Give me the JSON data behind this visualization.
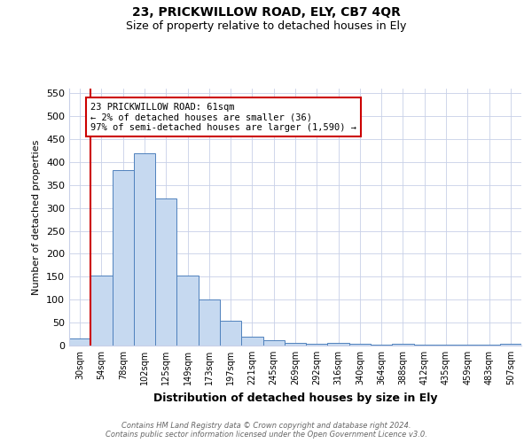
{
  "title1": "23, PRICKWILLOW ROAD, ELY, CB7 4QR",
  "title2": "Size of property relative to detached houses in Ely",
  "xlabel": "Distribution of detached houses by size in Ely",
  "ylabel": "Number of detached properties",
  "categories": [
    "30sqm",
    "54sqm",
    "78sqm",
    "102sqm",
    "125sqm",
    "149sqm",
    "173sqm",
    "197sqm",
    "221sqm",
    "245sqm",
    "269sqm",
    "292sqm",
    "316sqm",
    "340sqm",
    "364sqm",
    "388sqm",
    "412sqm",
    "435sqm",
    "459sqm",
    "483sqm",
    "507sqm"
  ],
  "values": [
    15,
    152,
    383,
    420,
    320,
    152,
    100,
    55,
    20,
    12,
    6,
    4,
    5,
    4,
    2,
    3,
    1,
    2,
    1,
    1,
    4
  ],
  "bar_color": "#c6d9f0",
  "bar_edge_color": "#4f81bd",
  "vline_x_index": 1,
  "vline_color": "#cc0000",
  "annotation_lines": [
    "23 PRICKWILLOW ROAD: 61sqm",
    "← 2% of detached houses are smaller (36)",
    "97% of semi-detached houses are larger (1,590) →"
  ],
  "annotation_box_color": "#ffffff",
  "annotation_box_edge": "#cc0000",
  "ylim": [
    0,
    560
  ],
  "yticks": [
    0,
    50,
    100,
    150,
    200,
    250,
    300,
    350,
    400,
    450,
    500,
    550
  ],
  "footer1": "Contains HM Land Registry data © Crown copyright and database right 2024.",
  "footer2": "Contains public sector information licensed under the Open Government Licence v3.0.",
  "bg_color": "#ffffff",
  "grid_color": "#c8d0e8",
  "title1_fontsize": 10,
  "title2_fontsize": 9,
  "xlabel_fontsize": 9,
  "ylabel_fontsize": 8,
  "xtick_fontsize": 7,
  "ytick_fontsize": 8,
  "footer_fontsize": 6,
  "annotation_fontsize": 7.5
}
